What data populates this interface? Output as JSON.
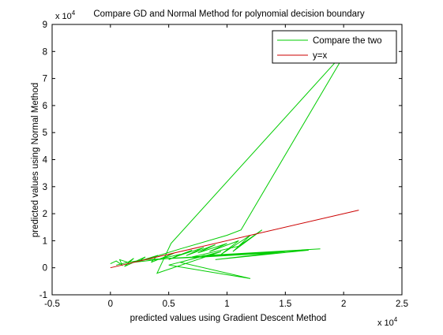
{
  "chart_data": {
    "type": "line",
    "title": "Compare GD and Normal Method for polynomial decision boundary",
    "xlabel": "predicted values using Gradient Descent Method",
    "ylabel": "predicted values using Normal Method",
    "x_exponent": "x 10",
    "x_exponent_power": "4",
    "y_exponent": "x 10",
    "y_exponent_power": "4",
    "xlim": [
      -0.5,
      2.5
    ],
    "ylim": [
      -1,
      9
    ],
    "xticks": [
      -0.5,
      0,
      0.5,
      1,
      1.5,
      2,
      2.5
    ],
    "xtick_labels": [
      "-0.5",
      "0",
      "0.5",
      "1",
      "1.5",
      "2",
      "2.5"
    ],
    "yticks": [
      -1,
      0,
      1,
      2,
      3,
      4,
      5,
      6,
      7,
      8,
      9
    ],
    "ytick_labels": [
      "-1",
      "0",
      "1",
      "2",
      "3",
      "4",
      "5",
      "6",
      "7",
      "8",
      "9"
    ],
    "grid": false,
    "legend_position": "top-right",
    "colors": {
      "compare": "#00cc00",
      "identity": "#cc0000",
      "axes": "#000000"
    },
    "series": [
      {
        "name": "Compare the two",
        "style": "green-polyline",
        "x": [
          0.0,
          0.05,
          0.1,
          0.08,
          0.15,
          0.2,
          0.12,
          0.3,
          0.25,
          0.4,
          0.35,
          0.55,
          0.45,
          0.6,
          0.5,
          0.7,
          0.55,
          0.8,
          0.65,
          0.9,
          0.75,
          1.0,
          0.85,
          1.1,
          0.95,
          1.2,
          1.05,
          1.3,
          1.1,
          0.7,
          1.5,
          0.9,
          1.7,
          1.0,
          1.8,
          0.8,
          0.6,
          1.2,
          0.5,
          0.95,
          0.4,
          0.52,
          1.95,
          2.05,
          1.12,
          1.0,
          0.6,
          0.3,
          0.2,
          0.5,
          1.4,
          0.8,
          0.3,
          0.15,
          0.05
        ],
        "y": [
          0.15,
          0.25,
          0.1,
          0.3,
          0.2,
          0.35,
          0.05,
          0.4,
          0.25,
          0.45,
          0.2,
          0.55,
          0.35,
          0.5,
          0.3,
          0.65,
          0.4,
          0.75,
          0.45,
          0.85,
          0.55,
          0.9,
          0.6,
          1.0,
          0.5,
          1.2,
          0.6,
          1.4,
          0.8,
          0.4,
          0.6,
          0.3,
          0.65,
          0.5,
          0.7,
          0.45,
          0.2,
          -0.4,
          0.1,
          0.6,
          -0.2,
          0.9,
          7.7,
          8.2,
          1.4,
          1.2,
          0.7,
          0.3,
          0.2,
          0.35,
          0.55,
          0.4,
          0.3,
          0.2,
          0.1
        ]
      },
      {
        "name": "y=x",
        "style": "red-line",
        "x": [
          0,
          2.13
        ],
        "y": [
          0,
          2.13
        ]
      }
    ]
  }
}
